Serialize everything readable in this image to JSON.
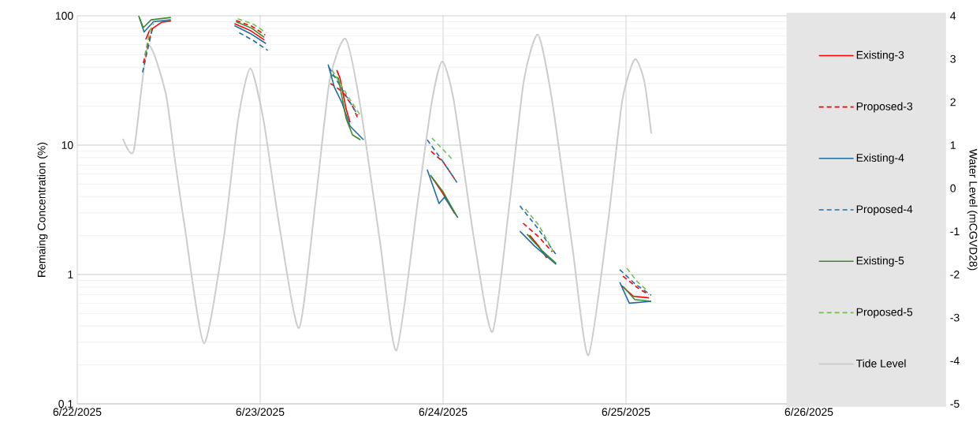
{
  "chart_data": {
    "type": "line",
    "ylabel": "Remaing Concentration (%)",
    "y2label": "Water Level (mCGVD28)",
    "log": "y",
    "grid": true,
    "legend": "right",
    "xlim": [
      "2025-06-22",
      "2025-06-26T18:00"
    ],
    "xticks": [
      {
        "value": "2025-06-22",
        "label": "6/22/2025"
      },
      {
        "value": "2025-06-23",
        "label": "6/23/2025"
      },
      {
        "value": "2025-06-24",
        "label": "6/24/2025"
      },
      {
        "value": "2025-06-25",
        "label": "6/25/2025"
      },
      {
        "value": "2025-06-26",
        "label": "6/26/2025"
      }
    ],
    "ylim": [
      0.1,
      100
    ],
    "yticks": [
      0.1,
      1,
      10,
      100
    ],
    "y2lim": [
      -5,
      4
    ],
    "y2ticks": [
      -5,
      -4,
      -3,
      -2,
      -1,
      0,
      1,
      2,
      3,
      4
    ],
    "series": [
      {
        "name": "Existing-3",
        "color": "#ff0000",
        "line_style": "solid",
        "x": [
          "2025-06-22T08:59",
          "2025-06-22T09:29",
          "2025-06-22T11:02",
          "2025-06-22T12:17",
          null,
          "2025-06-22T20:38",
          "2025-06-22T22:42",
          "2025-06-23T00:33",
          null,
          "2025-06-23T10:03",
          "2025-06-23T10:28",
          "2025-06-23T11:17",
          "2025-06-23T11:48",
          null,
          "2025-06-23T22:26",
          "2025-06-23T23:59",
          "2025-06-24T01:32",
          null,
          "2025-06-24T11:20",
          "2025-06-24T12:34",
          "2025-06-24T13:36",
          null,
          "2025-06-24T23:24",
          "2025-06-25T00:57",
          "2025-06-25T03:01"
        ],
        "values": [
          65.6,
          77,
          89,
          91,
          null,
          87,
          77,
          65,
          null,
          38,
          33,
          19,
          15,
          null,
          5.75,
          4.23,
          2.95,
          null,
          2.02,
          1.65,
          1.34,
          null,
          0.82,
          0.68,
          0.66
        ]
      },
      {
        "name": "Proposed-3",
        "color": "#ff0000",
        "line_style": "dashed",
        "x": [
          "2025-06-22T08:40",
          "2025-06-22T09:17",
          "2025-06-22T10:00",
          null,
          "2025-06-22T20:50",
          "2025-06-22T22:54",
          "2025-06-23T00:40",
          null,
          "2025-06-23T09:13",
          "2025-06-23T10:46",
          "2025-06-23T12:07",
          "2025-06-23T12:50",
          null,
          "2025-06-23T22:26",
          "2025-06-23T23:59",
          "2025-06-24T01:32",
          null,
          "2025-06-24T10:30",
          "2025-06-24T12:34",
          "2025-06-24T14:19",
          null,
          "2025-06-24T23:36",
          "2025-06-25T01:46",
          "2025-06-25T03:01"
        ],
        "values": [
          43,
          61,
          84,
          null,
          92,
          83,
          71,
          null,
          30,
          26,
          20,
          16,
          null,
          8.94,
          7.45,
          5.47,
          null,
          2.49,
          1.95,
          1.5,
          null,
          0.97,
          0.77,
          0.7
        ]
      },
      {
        "name": "Existing-4",
        "color": "#1f6fa3",
        "line_style": "solid",
        "x": [
          "2025-06-22T08:09",
          "2025-06-22T08:46",
          "2025-06-22T10:00",
          "2025-06-22T12:17",
          null,
          "2025-06-22T20:38",
          "2025-06-22T22:42",
          "2025-06-23T00:46",
          null,
          "2025-06-23T08:55",
          "2025-06-23T09:44",
          "2025-06-23T10:46",
          "2025-06-23T11:48",
          "2025-06-23T13:34",
          null,
          "2025-06-23T21:55",
          "2025-06-23T23:28",
          "2025-06-24T00:11",
          "2025-06-24T01:56",
          null,
          "2025-06-24T10:05",
          "2025-06-24T12:03",
          "2025-06-24T14:50",
          null,
          "2025-06-24T23:11",
          "2025-06-25T00:26",
          "2025-06-25T03:19"
        ],
        "values": [
          97,
          75,
          90,
          93,
          null,
          84,
          73,
          61,
          null,
          42,
          28,
          21,
          14,
          11,
          null,
          6.47,
          3.54,
          3.96,
          2.75,
          null,
          2.16,
          1.65,
          1.2,
          null,
          0.87,
          0.6,
          0.62
        ]
      },
      {
        "name": "Proposed-4",
        "color": "#1f6fa3",
        "line_style": "dashed",
        "x": [
          "2025-06-22T08:34",
          "2025-06-22T09:11",
          "2025-06-22T09:48",
          null,
          "2025-06-22T21:15",
          "2025-06-22T23:10",
          "2025-06-23T01:00",
          null,
          "2025-06-23T09:01",
          "2025-06-23T11:17",
          "2025-06-23T12:50",
          null,
          "2025-06-23T21:55",
          "2025-06-23T23:59",
          "2025-06-24T01:56",
          null,
          "2025-06-24T10:05",
          "2025-06-24T12:22",
          "2025-06-24T14:50",
          null,
          "2025-06-24T23:11",
          "2025-06-25T01:09",
          "2025-06-25T03:19"
        ],
        "values": [
          36.5,
          53,
          77,
          null,
          74,
          64,
          54,
          null,
          40,
          24,
          17,
          null,
          11,
          7.45,
          5.03,
          null,
          3.39,
          2.3,
          1.42,
          null,
          1.09,
          0.85,
          0.69
        ]
      },
      {
        "name": "Existing-5",
        "color": "#3a8a2a",
        "line_style": "solid",
        "x": [
          "2025-06-22T08:03",
          "2025-06-22T08:40",
          "2025-06-22T09:42",
          "2025-06-22T12:17",
          null,
          "2025-06-22T20:50",
          "2025-06-22T22:54",
          "2025-06-23T00:33",
          null,
          "2025-06-23T09:13",
          "2025-06-23T10:15",
          "2025-06-23T11:17",
          "2025-06-23T12:07",
          "2025-06-23T13:09",
          null,
          "2025-06-23T22:20",
          "2025-06-23T23:59",
          "2025-06-24T01:44",
          null,
          "2025-06-24T11:01",
          "2025-06-24T12:53",
          "2025-06-24T14:50",
          null,
          "2025-06-24T23:36",
          "2025-06-25T01:09",
          "2025-06-25T03:19"
        ],
        "values": [
          100,
          81,
          93,
          97,
          null,
          90,
          80,
          68,
          null,
          35,
          33,
          16,
          12,
          11,
          null,
          5.87,
          4.37,
          2.87,
          null,
          2.05,
          1.55,
          1.22,
          null,
          0.81,
          0.64,
          0.62
        ]
      },
      {
        "name": "Proposed-5",
        "color": "#70c050",
        "line_style": "dashed",
        "x": [
          "2025-06-22T08:52",
          "2025-06-22T09:29",
          "2025-06-22T10:00",
          null,
          "2025-06-22T21:03",
          "2025-06-22T23:07",
          "2025-06-23T00:46",
          null,
          "2025-06-23T09:26",
          "2025-06-23T11:17",
          "2025-06-23T13:09",
          null,
          "2025-06-23T22:32",
          "2025-06-24T01:13",
          null,
          "2025-06-24T10:49",
          "2025-06-24T12:34",
          "2025-06-24T14:26",
          null,
          "2025-06-25T00:07",
          "2025-06-25T01:28",
          "2025-06-25T02:42"
        ],
        "values": [
          49.6,
          75.5,
          87,
          null,
          95,
          86,
          74,
          null,
          38,
          25,
          17,
          null,
          11.35,
          7.77,
          null,
          3.21,
          2.4,
          1.52,
          null,
          1.12,
          0.88,
          0.76
        ]
      },
      {
        "name": "Tide Level",
        "color": "#cccccc",
        "line_style": "solid",
        "axis": "y2",
        "x": [
          "2025-06-22T06:00",
          "2025-06-22T07:25",
          "2025-06-22T09:15",
          "2025-06-22T11:35",
          "2025-06-22T12:50",
          "2025-06-22T14:05",
          "2025-06-22T16:37",
          "2025-06-22T19:10",
          "2025-06-22T21:05",
          "2025-06-22T22:42",
          "2025-06-23T00:27",
          "2025-06-23T02:31",
          "2025-06-23T05:06",
          "2025-06-23T07:16",
          "2025-06-23T09:07",
          "2025-06-23T11:11",
          "2025-06-23T13:02",
          "2025-06-23T15:43",
          "2025-06-23T17:53",
          "2025-06-23T20:41",
          "2025-06-23T22:32",
          "2025-06-23T23:53",
          "2025-06-24T01:25",
          "2025-06-24T04:06",
          "2025-06-24T06:29",
          "2025-06-24T08:45",
          "2025-06-24T10:36",
          "2025-06-24T12:27",
          "2025-06-24T14:19",
          "2025-06-24T17:00",
          "2025-06-24T19:04",
          "2025-06-24T21:39",
          "2025-06-24T23:30",
          "2025-06-25T01:09",
          "2025-06-25T02:23",
          "2025-06-25T03:19"
        ],
        "values": [
          1.15,
          0.87,
          3.3,
          2.22,
          0.63,
          -0.87,
          -3.59,
          -1.23,
          1.57,
          2.78,
          1.57,
          -0.87,
          -3.24,
          -0.3,
          2.5,
          3.47,
          2.02,
          -1.23,
          -3.76,
          -0.3,
          2.02,
          2.94,
          2.02,
          -1.23,
          -3.33,
          -0.3,
          2.5,
          3.56,
          2.02,
          -1.41,
          -3.87,
          -0.77,
          2.02,
          2.99,
          2.5,
          1.27
        ]
      }
    ]
  }
}
